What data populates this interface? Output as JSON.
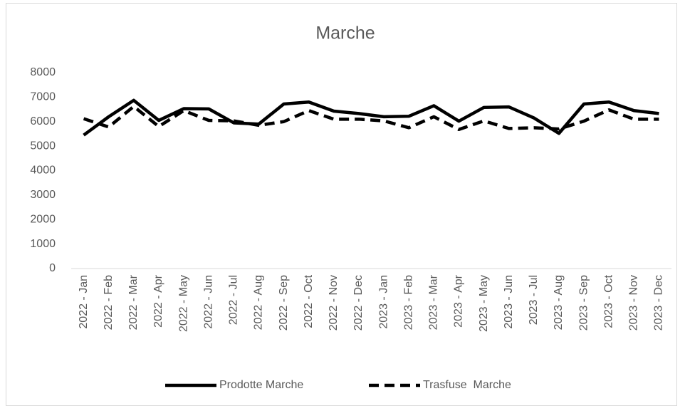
{
  "chart_data": {
    "type": "line",
    "title": "Marche",
    "categories": [
      "2022 - Jan",
      "2022 - Feb",
      "2022 - Mar",
      "2022 - Apr",
      "2022 - May",
      "2022 - Jun",
      "2022 - Jul",
      "2022 - Aug",
      "2022 - Sep",
      "2022 - Oct",
      "2022 - Nov",
      "2022 - Dec",
      "2023 - Jan",
      "2023 - Feb",
      "2023 - Mar",
      "2023 - Apr",
      "2023 - May",
      "2023 - Jun",
      "2023 - Jul",
      "2023 - Aug",
      "2023 - Sep",
      "2023 - Oct",
      "2023 - Nov",
      "2023 - Dec"
    ],
    "series": [
      {
        "name": "Prodotte Marche",
        "color": "#000000",
        "dash": "solid",
        "values": [
          5450,
          6200,
          6870,
          6050,
          6530,
          6520,
          5950,
          5900,
          6720,
          6800,
          6430,
          6330,
          6200,
          6220,
          6650,
          6020,
          6580,
          6600,
          6150,
          5520,
          6720,
          6800,
          6450,
          6330
        ]
      },
      {
        "name": "Trasfuse  Marche",
        "color": "#000000",
        "dash": "dashed",
        "values": [
          6120,
          5780,
          6620,
          5800,
          6450,
          6050,
          6030,
          5850,
          6000,
          6450,
          6100,
          6100,
          6030,
          5750,
          6200,
          5680,
          6030,
          5720,
          5750,
          5700,
          6020,
          6480,
          6100,
          6100
        ]
      }
    ],
    "ylim": [
      0,
      8000
    ],
    "yticks": [
      0,
      1000,
      2000,
      3000,
      4000,
      5000,
      6000,
      7000,
      8000
    ],
    "grid": false,
    "legend": "bottom"
  }
}
